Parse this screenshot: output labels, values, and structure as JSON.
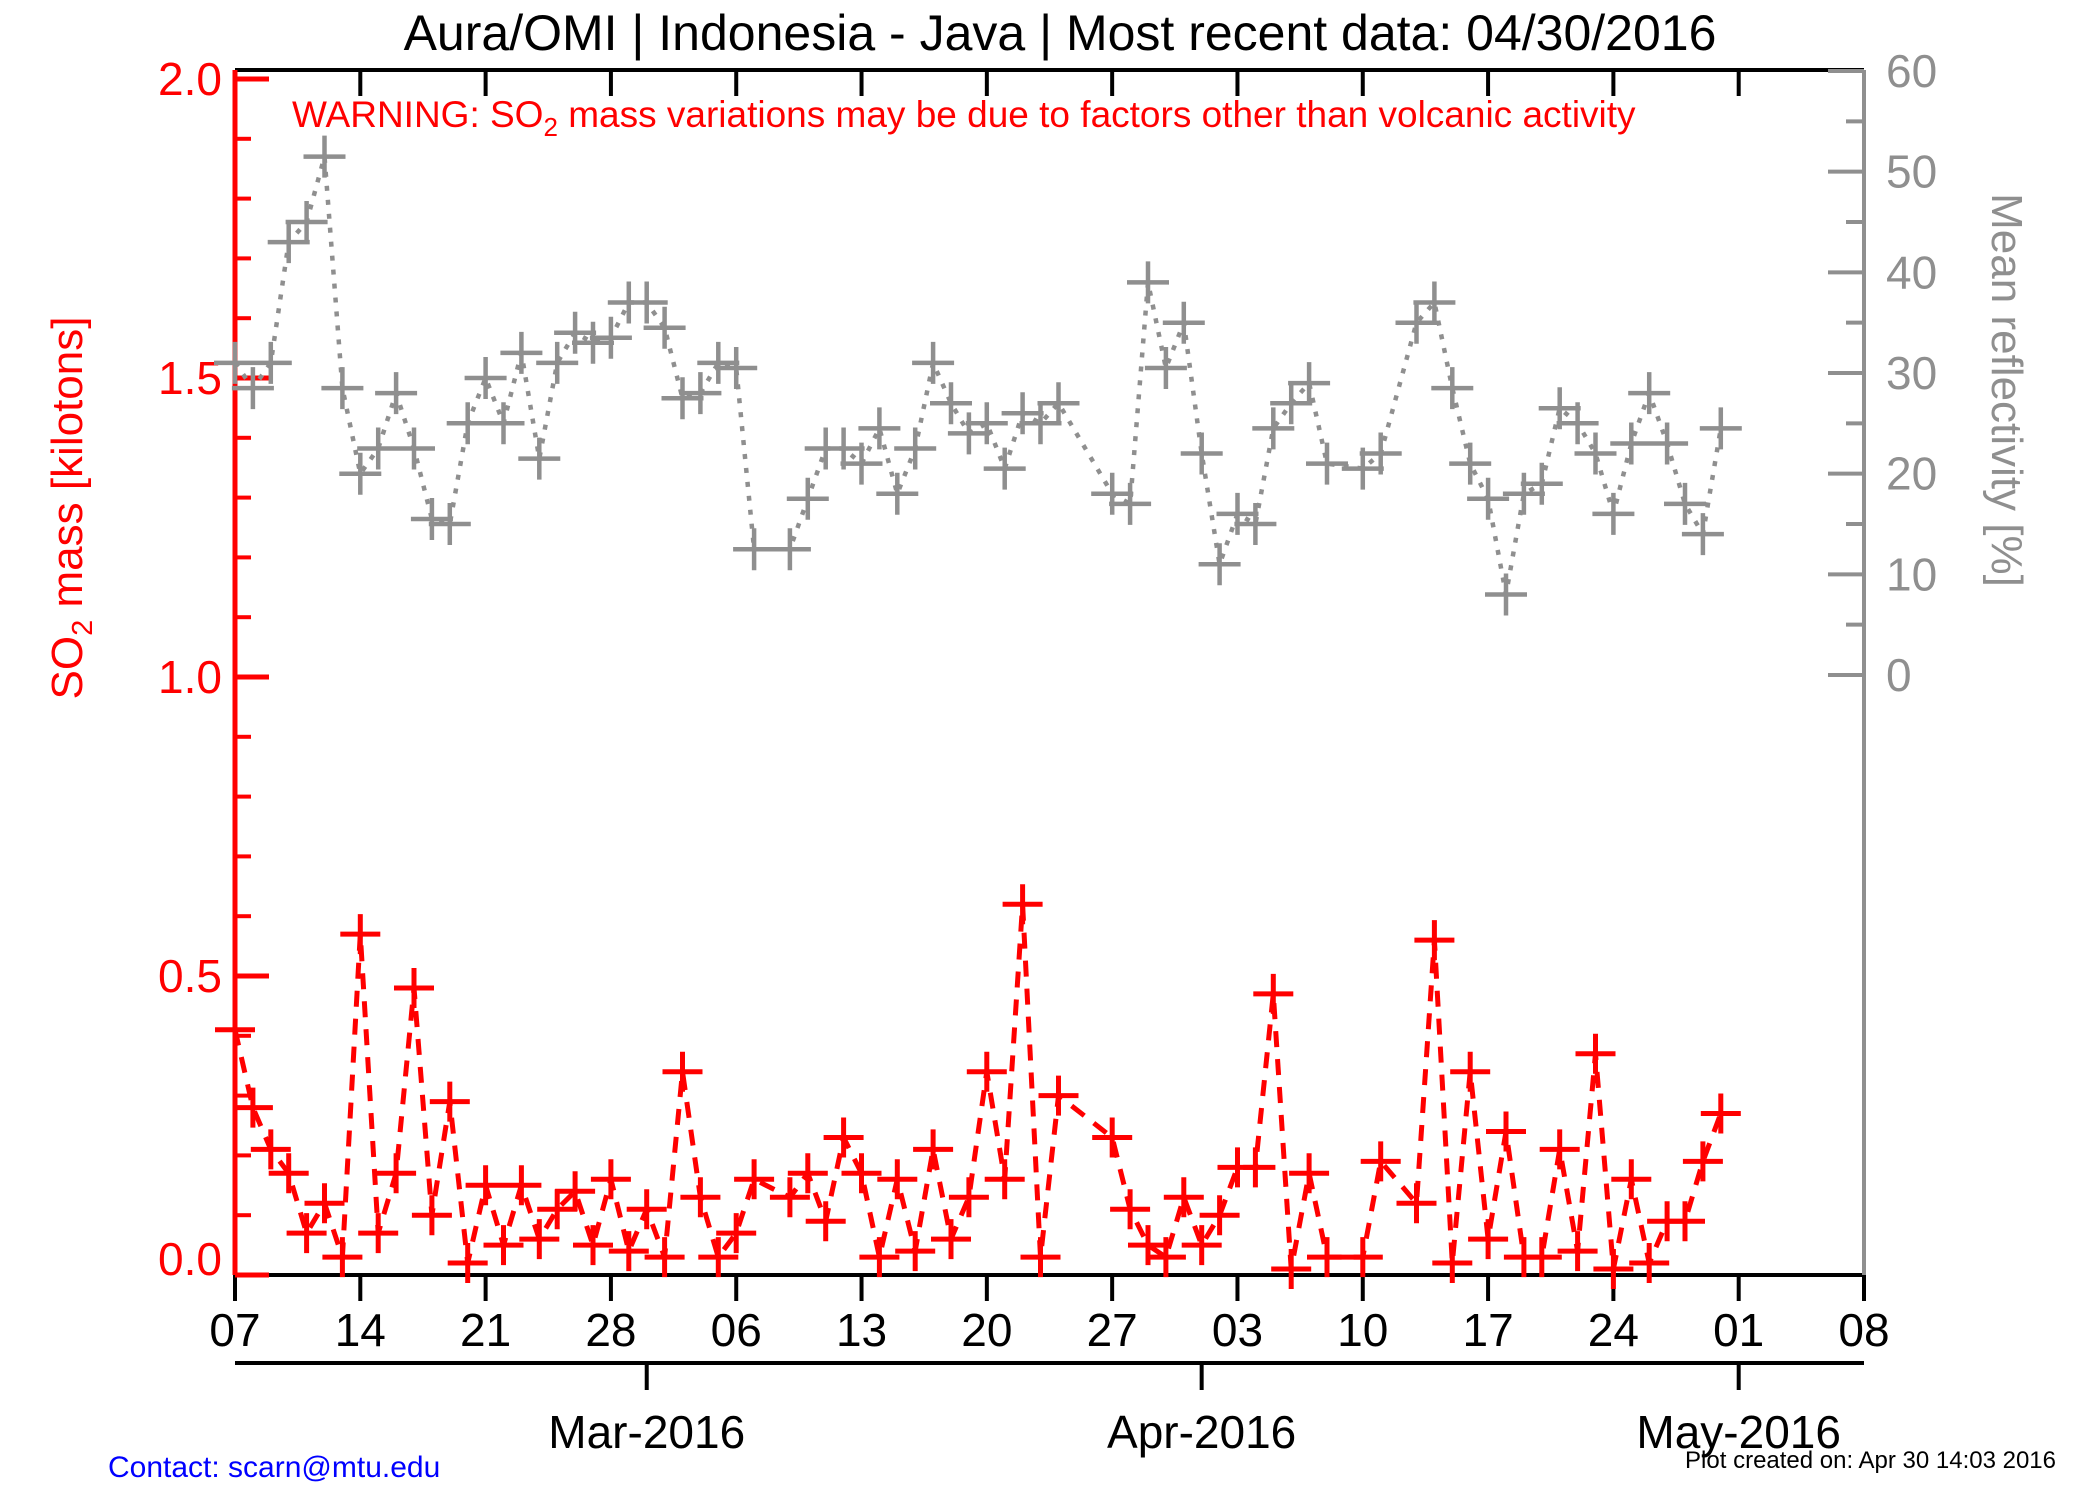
{
  "title": "Aura/OMI | Indonesia - Java | Most recent data: 04/30/2016",
  "warning": {
    "prefix": "WARNING: SO",
    "sub": "2",
    "suffix": " mass variations may be due to factors other than volcanic activity"
  },
  "footer": {
    "contact": "Contact: scarn@mtu.edu",
    "created": "Plot created on: Apr 30 14:03 2016"
  },
  "colors": {
    "so2": "#ff0000",
    "reflectivity": "#8f8f8f",
    "axis_black": "#000000",
    "contact_blue": "#0000ff"
  },
  "chart_data": {
    "type": "line",
    "title": "Aura/OMI | Indonesia - Java | Most recent data: 04/30/2016",
    "x_axis": {
      "start_date": "02/07/2016",
      "end_date": "05/08/2016",
      "total_days": 91,
      "week_tick_labels": [
        "07",
        "14",
        "21",
        "28",
        "06",
        "13",
        "20",
        "27",
        "03",
        "10",
        "17",
        "24",
        "01",
        "08"
      ],
      "week_tick_day_offsets": [
        0,
        7,
        14,
        21,
        28,
        35,
        42,
        49,
        56,
        63,
        70,
        77,
        84,
        91
      ],
      "month_ticks": [
        {
          "label": "Mar-2016",
          "day_offset": 23
        },
        {
          "label": "Apr-2016",
          "day_offset": 54
        },
        {
          "label": "May-2016",
          "day_offset": 84
        }
      ]
    },
    "y_left": {
      "label_prefix": "SO",
      "label_sub": "2",
      "label_suffix": " mass [kilotons]",
      "min": 0,
      "max": 2,
      "major_step": 0.5,
      "minor_step": 0.1,
      "tick_labels": [
        "0.0",
        "0.5",
        "1.0",
        "1.5",
        "2.0"
      ],
      "color": "#ff0000"
    },
    "y_right": {
      "label": "Mean reflectivity [%]",
      "min": 0,
      "max": 60,
      "major_step": 10,
      "minor_step": 5,
      "tick_labels": [
        "0",
        "10",
        "20",
        "30",
        "40",
        "50",
        "60"
      ],
      "color": "#8f8f8f"
    },
    "grid": false,
    "legend": "none",
    "series": [
      {
        "name": "Mean reflectivity",
        "axis": "right",
        "style": "dotted",
        "marker": "plus",
        "color": "#8f8f8f",
        "points": [
          [
            "02/07",
            31
          ],
          [
            "02/08",
            28.5
          ],
          [
            "02/09",
            31
          ],
          [
            "02/10",
            43
          ],
          [
            "02/11",
            45
          ],
          [
            "02/12",
            51.5
          ],
          [
            "02/13",
            28.5
          ],
          [
            "02/14",
            20
          ],
          [
            "02/15",
            22.5
          ],
          [
            "02/16",
            28
          ],
          [
            "02/17",
            22.5
          ],
          [
            "02/18",
            15.5
          ],
          [
            "02/19",
            15
          ],
          [
            "02/20",
            25
          ],
          [
            "02/21",
            29.5
          ],
          [
            "02/22",
            25
          ],
          [
            "02/23",
            32
          ],
          [
            "02/24",
            21.5
          ],
          [
            "02/25",
            31
          ],
          [
            "02/26",
            34
          ],
          [
            "02/27",
            33
          ],
          [
            "02/28",
            33.5
          ],
          [
            "02/29",
            37
          ],
          [
            "03/01",
            37
          ],
          [
            "03/02",
            34.5
          ],
          [
            "03/03",
            27.5
          ],
          [
            "03/04",
            28
          ],
          [
            "03/05",
            31
          ],
          [
            "03/06",
            30.5
          ],
          [
            "03/07",
            12.5
          ],
          [
            "03/09",
            12.5
          ],
          [
            "03/10",
            17.5
          ],
          [
            "03/11",
            22.5
          ],
          [
            "03/12",
            22.5
          ],
          [
            "03/13",
            21
          ],
          [
            "03/14",
            24.5
          ],
          [
            "03/15",
            18
          ],
          [
            "03/16",
            22.5
          ],
          [
            "03/17",
            31
          ],
          [
            "03/18",
            27
          ],
          [
            "03/19",
            24
          ],
          [
            "03/20",
            25
          ],
          [
            "03/21",
            20.5
          ],
          [
            "03/22",
            26
          ],
          [
            "03/23",
            25
          ],
          [
            "03/24",
            27
          ],
          [
            "03/27",
            18
          ],
          [
            "03/28",
            17
          ],
          [
            "03/29",
            39
          ],
          [
            "03/30",
            30.5
          ],
          [
            "03/31",
            35
          ],
          [
            "04/01",
            22
          ],
          [
            "04/02",
            11
          ],
          [
            "04/03",
            16
          ],
          [
            "04/04",
            15
          ],
          [
            "04/05",
            24.5
          ],
          [
            "04/06",
            27
          ],
          [
            "04/07",
            29
          ],
          [
            "04/08",
            21
          ],
          [
            "04/10",
            20.5
          ],
          [
            "04/11",
            22
          ],
          [
            "04/13",
            35
          ],
          [
            "04/14",
            37
          ],
          [
            "04/15",
            28.5
          ],
          [
            "04/16",
            21
          ],
          [
            "04/17",
            17.5
          ],
          [
            "04/18",
            8
          ],
          [
            "04/19",
            18
          ],
          [
            "04/20",
            19
          ],
          [
            "04/21",
            26.5
          ],
          [
            "04/22",
            25
          ],
          [
            "04/23",
            22
          ],
          [
            "04/24",
            16
          ],
          [
            "04/25",
            23
          ],
          [
            "04/26",
            28
          ],
          [
            "04/27",
            23
          ],
          [
            "04/28",
            17
          ],
          [
            "04/29",
            14
          ],
          [
            "04/30",
            24.5
          ]
        ]
      },
      {
        "name": "SO2 mass",
        "axis": "left",
        "style": "dashed",
        "marker": "plus",
        "color": "#ff0000",
        "points": [
          [
            "02/07",
            0.41
          ],
          [
            "02/08",
            0.28
          ],
          [
            "02/09",
            0.21
          ],
          [
            "02/10",
            0.17
          ],
          [
            "02/11",
            0.07
          ],
          [
            "02/12",
            0.12
          ],
          [
            "02/13",
            0.03
          ],
          [
            "02/14",
            0.57
          ],
          [
            "02/15",
            0.07
          ],
          [
            "02/16",
            0.17
          ],
          [
            "02/17",
            0.48
          ],
          [
            "02/18",
            0.1
          ],
          [
            "02/19",
            0.29
          ],
          [
            "02/20",
            0.02
          ],
          [
            "02/21",
            0.15
          ],
          [
            "02/22",
            0.05
          ],
          [
            "02/23",
            0.15
          ],
          [
            "02/24",
            0.06
          ],
          [
            "02/25",
            0.11
          ],
          [
            "02/26",
            0.14
          ],
          [
            "02/27",
            0.05
          ],
          [
            "02/28",
            0.16
          ],
          [
            "02/29",
            0.04
          ],
          [
            "03/01",
            0.11
          ],
          [
            "03/02",
            0.03
          ],
          [
            "03/03",
            0.34
          ],
          [
            "03/04",
            0.13
          ],
          [
            "03/05",
            0.03
          ],
          [
            "03/06",
            0.07
          ],
          [
            "03/07",
            0.16
          ],
          [
            "03/09",
            0.13
          ],
          [
            "03/10",
            0.17
          ],
          [
            "03/11",
            0.09
          ],
          [
            "03/12",
            0.23
          ],
          [
            "03/13",
            0.17
          ],
          [
            "03/14",
            0.03
          ],
          [
            "03/15",
            0.16
          ],
          [
            "03/16",
            0.04
          ],
          [
            "03/17",
            0.21
          ],
          [
            "03/18",
            0.06
          ],
          [
            "03/19",
            0.13
          ],
          [
            "03/20",
            0.34
          ],
          [
            "03/21",
            0.16
          ],
          [
            "03/22",
            0.62
          ],
          [
            "03/23",
            0.03
          ],
          [
            "03/24",
            0.3
          ],
          [
            "03/27",
            0.23
          ],
          [
            "03/28",
            0.11
          ],
          [
            "03/29",
            0.05
          ],
          [
            "03/30",
            0.03
          ],
          [
            "03/31",
            0.13
          ],
          [
            "04/01",
            0.05
          ],
          [
            "04/02",
            0.1
          ],
          [
            "04/03",
            0.18
          ],
          [
            "04/04",
            0.18
          ],
          [
            "04/05",
            0.47
          ],
          [
            "04/06",
            0.01
          ],
          [
            "04/07",
            0.17
          ],
          [
            "04/08",
            0.03
          ],
          [
            "04/10",
            0.03
          ],
          [
            "04/11",
            0.19
          ],
          [
            "04/13",
            0.12
          ],
          [
            "04/14",
            0.56
          ],
          [
            "04/15",
            0.02
          ],
          [
            "04/16",
            0.34
          ],
          [
            "04/17",
            0.06
          ],
          [
            "04/18",
            0.24
          ],
          [
            "04/19",
            0.03
          ],
          [
            "04/20",
            0.03
          ],
          [
            "04/21",
            0.21
          ],
          [
            "04/22",
            0.04
          ],
          [
            "04/23",
            0.37
          ],
          [
            "04/24",
            0.01
          ],
          [
            "04/25",
            0.16
          ],
          [
            "04/26",
            0.02
          ],
          [
            "04/27",
            0.09
          ],
          [
            "04/28",
            0.09
          ],
          [
            "04/29",
            0.19
          ],
          [
            "04/30",
            0.27
          ]
        ]
      }
    ]
  }
}
